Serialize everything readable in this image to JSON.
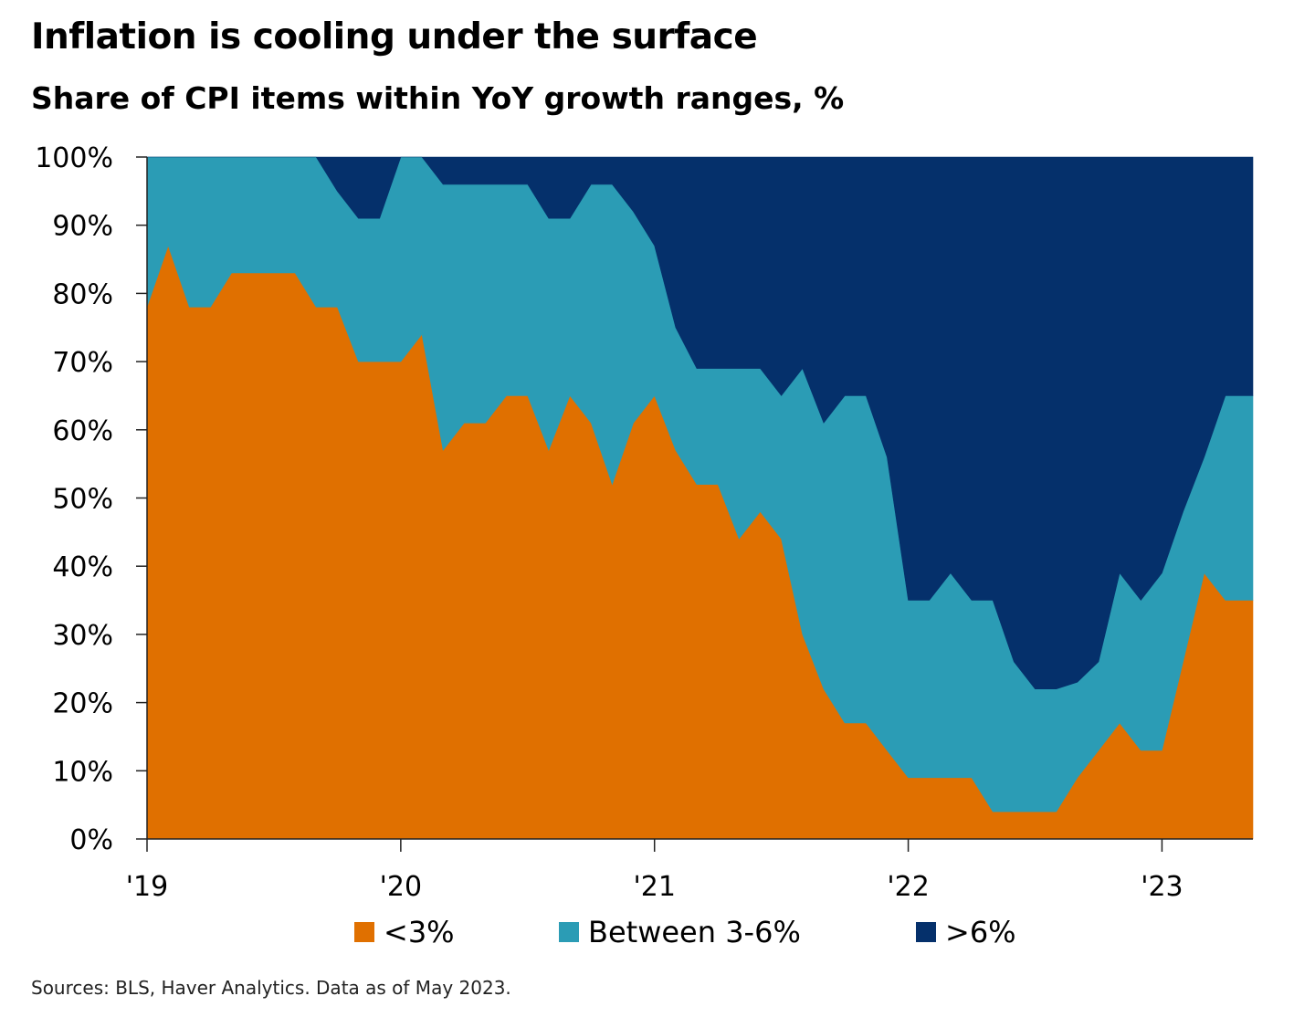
{
  "chart_data": {
    "type": "area",
    "stacked": true,
    "title": "Inflation is cooling under the surface",
    "subtitle": "Share of CPI items within YoY growth ranges, %",
    "source": "Sources: BLS, Haver Analytics. Data as of May 2023.",
    "xlabel": "",
    "ylabel": "",
    "x_start": "2019-01",
    "x_period": "monthly",
    "x_ticks": [
      {
        "label": "'19",
        "index": 0
      },
      {
        "label": "'20",
        "index": 12
      },
      {
        "label": "'21",
        "index": 24
      },
      {
        "label": "'22",
        "index": 36
      },
      {
        "label": "'23",
        "index": 48
      }
    ],
    "ylim": [
      0,
      100
    ],
    "y_ticks": [
      "0%",
      "10%",
      "20%",
      "30%",
      "40%",
      "50%",
      "60%",
      "70%",
      "80%",
      "90%",
      "100%"
    ],
    "y_tick_values": [
      0,
      10,
      20,
      30,
      40,
      50,
      60,
      70,
      80,
      90,
      100
    ],
    "legend_position": "bottom",
    "series": [
      {
        "name": "<3%",
        "color": "#E07000",
        "values": [
          78,
          87,
          78,
          78,
          83,
          83,
          83,
          83,
          78,
          78,
          70,
          70,
          70,
          74,
          57,
          61,
          61,
          65,
          65,
          57,
          65,
          61,
          52,
          61,
          65,
          57,
          52,
          52,
          44,
          48,
          44,
          30,
          22,
          17,
          17,
          13,
          9,
          9,
          9,
          9,
          4,
          4,
          4,
          4,
          9,
          13,
          17,
          13,
          13,
          26,
          39,
          35
        ]
      },
      {
        "name": "Between 3-6%",
        "color": "#2B9CB5",
        "values": [
          22,
          13,
          22,
          22,
          17,
          17,
          17,
          17,
          22,
          17,
          21,
          21,
          30,
          26,
          39,
          35,
          35,
          31,
          31,
          34,
          26,
          35,
          44,
          31,
          22,
          18,
          17,
          17,
          25,
          21,
          21,
          39,
          39,
          48,
          48,
          43,
          26,
          26,
          30,
          26,
          31,
          22,
          18,
          18,
          14,
          13,
          22,
          22,
          26,
          22,
          17,
          30
        ]
      },
      {
        "name": ">6%",
        "color": "#05306B",
        "values": [
          0,
          0,
          0,
          0,
          0,
          0,
          0,
          0,
          0,
          5,
          9,
          9,
          0,
          0,
          4,
          4,
          4,
          4,
          4,
          9,
          9,
          4,
          4,
          8,
          13,
          25,
          31,
          31,
          31,
          31,
          35,
          31,
          39,
          35,
          35,
          44,
          65,
          65,
          61,
          65,
          65,
          74,
          78,
          78,
          77,
          74,
          61,
          65,
          61,
          52,
          44,
          35
        ]
      }
    ]
  }
}
